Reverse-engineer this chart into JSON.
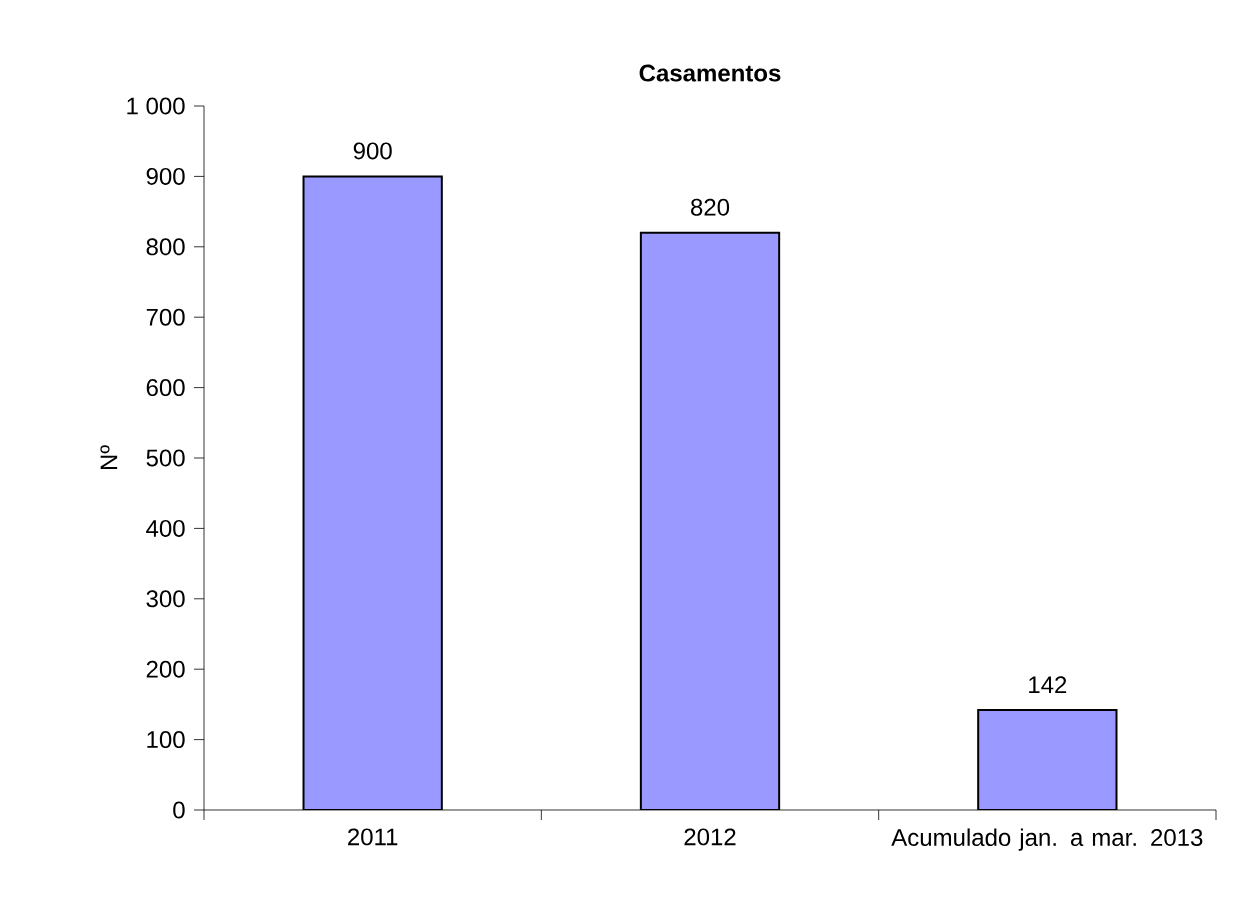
{
  "chart_data": {
    "type": "bar",
    "title": "Casamentos",
    "ylabel": "Nº",
    "categories": [
      "2011",
      "2012",
      "Acumulado jan. a mar. 2013"
    ],
    "values": [
      900,
      820,
      142
    ],
    "color": "#9999ff",
    "ylim": [
      0,
      1000
    ],
    "yticks": [
      0,
      100,
      200,
      300,
      400,
      500,
      600,
      700,
      800,
      900,
      {
        "value": 1000,
        "label": "1 000"
      }
    ],
    "data_labels": true,
    "grid": false
  }
}
